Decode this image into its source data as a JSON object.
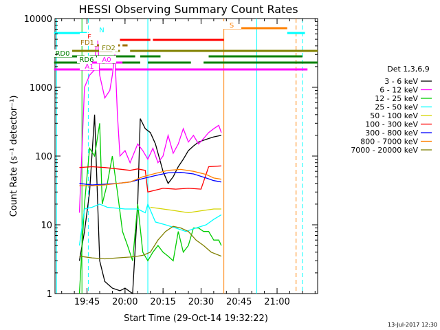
{
  "chart_data": {
    "type": "line",
    "title": "HESSI Observing Summary Count Rates",
    "xlabel": "Start Time (29-Oct-14 19:32:22)",
    "ylabel": "Count Rate (s⁻¹ detector⁻¹)",
    "yscale": "log",
    "ylim": [
      1,
      10000
    ],
    "xlim": [
      "19:32:22",
      "21:16:00"
    ],
    "x_ticks": [
      "19:45",
      "20:00",
      "20:15",
      "20:30",
      "20:45",
      "21:00"
    ],
    "y_ticks": [
      "1",
      "10",
      "100",
      "1000",
      "10000"
    ],
    "legend_title": "Det 1,3,6,9",
    "legend_position": "right",
    "series": [
      {
        "name": "3 - 6 keV",
        "color": "#000000",
        "points": [
          [
            "19:42",
            3
          ],
          [
            "19:44",
            8
          ],
          [
            "19:46",
            30
          ],
          [
            "19:48",
            400
          ],
          [
            "19:50",
            3
          ],
          [
            "19:52",
            1.5
          ],
          [
            "19:55",
            1.2
          ],
          [
            "19:58",
            1.1
          ],
          [
            "20:00",
            1.2
          ],
          [
            "20:03",
            1
          ],
          [
            "20:05",
            20
          ],
          [
            "20:06",
            350
          ],
          [
            "20:08",
            250
          ],
          [
            "20:10",
            220
          ],
          [
            "20:12",
            150
          ],
          [
            "20:15",
            60
          ],
          [
            "20:17",
            40
          ],
          [
            "20:19",
            50
          ],
          [
            "20:21",
            70
          ],
          [
            "20:23",
            90
          ],
          [
            "20:25",
            120
          ],
          [
            "20:27",
            140
          ],
          [
            "20:29",
            160
          ],
          [
            "20:31",
            170
          ],
          [
            "20:33",
            180
          ],
          [
            "20:35",
            190
          ],
          [
            "20:38",
            200
          ]
        ]
      },
      {
        "name": "6 - 12 keV",
        "color": "#ff00ff",
        "points": [
          [
            "19:42",
            15
          ],
          [
            "19:44",
            1000
          ],
          [
            "19:46",
            1500
          ],
          [
            "19:48",
            1800
          ],
          [
            "19:49",
            7000
          ],
          [
            "19:50",
            1500
          ],
          [
            "19:52",
            700
          ],
          [
            "19:54",
            900
          ],
          [
            "19:55",
            1500
          ],
          [
            "19:56",
            3000
          ],
          [
            "19:57",
            400
          ],
          [
            "19:58",
            100
          ],
          [
            "20:00",
            120
          ],
          [
            "20:02",
            80
          ],
          [
            "20:05",
            150
          ],
          [
            "20:07",
            120
          ],
          [
            "20:09",
            90
          ],
          [
            "20:11",
            130
          ],
          [
            "20:13",
            80
          ],
          [
            "20:15",
            100
          ],
          [
            "20:17",
            200
          ],
          [
            "20:19",
            110
          ],
          [
            "20:21",
            150
          ],
          [
            "20:23",
            250
          ],
          [
            "20:25",
            160
          ],
          [
            "20:27",
            200
          ],
          [
            "20:29",
            150
          ],
          [
            "20:31",
            180
          ],
          [
            "20:33",
            220
          ],
          [
            "20:35",
            250
          ],
          [
            "20:37",
            280
          ],
          [
            "20:38",
            220
          ]
        ]
      },
      {
        "name": "12 - 25 keV",
        "color": "#00cc00",
        "points": [
          [
            "19:42",
            1
          ],
          [
            "19:44",
            20
          ],
          [
            "19:46",
            130
          ],
          [
            "19:48",
            100
          ],
          [
            "19:50",
            300
          ],
          [
            "19:51",
            20
          ],
          [
            "19:53",
            40
          ],
          [
            "19:55",
            100
          ],
          [
            "19:57",
            30
          ],
          [
            "19:59",
            8
          ],
          [
            "20:01",
            5
          ],
          [
            "20:03",
            3
          ],
          [
            "20:05",
            20
          ],
          [
            "20:07",
            4
          ],
          [
            "20:09",
            3
          ],
          [
            "20:11",
            4
          ],
          [
            "20:13",
            5
          ],
          [
            "20:15",
            4
          ],
          [
            "20:17",
            3.5
          ],
          [
            "20:19",
            3
          ],
          [
            "20:21",
            8
          ],
          [
            "20:23",
            4
          ],
          [
            "20:25",
            5
          ],
          [
            "20:27",
            9
          ],
          [
            "20:29",
            9
          ],
          [
            "20:31",
            8
          ],
          [
            "20:33",
            8
          ],
          [
            "20:35",
            6
          ],
          [
            "20:37",
            6
          ],
          [
            "20:38",
            5
          ]
        ]
      },
      {
        "name": "25 - 50 keV",
        "color": "#00ffff",
        "points": [
          [
            "19:42",
            5
          ],
          [
            "19:44",
            17
          ],
          [
            "19:47",
            18
          ],
          [
            "19:50",
            20
          ],
          [
            "19:53",
            18
          ],
          [
            "20:00",
            17
          ],
          [
            "20:05",
            17
          ],
          [
            "20:08",
            15
          ],
          [
            "20:09",
            20
          ],
          [
            "20:12",
            11
          ],
          [
            "20:16",
            10
          ],
          [
            "20:20",
            9
          ],
          [
            "20:24",
            8
          ],
          [
            "20:28",
            9
          ],
          [
            "20:32",
            10
          ],
          [
            "20:35",
            12
          ],
          [
            "20:38",
            14
          ]
        ]
      },
      {
        "name": "50 - 100 keV",
        "color": "#d4d400",
        "points": [
          [
            "20:10",
            18
          ],
          [
            "20:15",
            17
          ],
          [
            "20:20",
            16
          ],
          [
            "20:25",
            15
          ],
          [
            "20:30",
            16
          ],
          [
            "20:35",
            17
          ],
          [
            "20:38",
            17
          ]
        ]
      },
      {
        "name": "100 - 300 keV",
        "color": "#ff0000",
        "points": [
          [
            "19:42",
            68
          ],
          [
            "19:47",
            70
          ],
          [
            "19:52",
            68
          ],
          [
            "19:57",
            65
          ],
          [
            "20:02",
            62
          ],
          [
            "20:05",
            65
          ],
          [
            "20:08",
            62
          ],
          [
            "20:09",
            30
          ],
          [
            "20:15",
            34
          ],
          [
            "20:20",
            33
          ],
          [
            "20:25",
            34
          ],
          [
            "20:30",
            33
          ],
          [
            "20:33",
            70
          ],
          [
            "20:38",
            72
          ]
        ]
      },
      {
        "name": "300 - 800 keV",
        "color": "#0000ff",
        "points": [
          [
            "19:42",
            40
          ],
          [
            "19:47",
            38
          ],
          [
            "19:52",
            39
          ],
          [
            "19:57",
            40
          ],
          [
            "20:02",
            42
          ],
          [
            "20:07",
            47
          ],
          [
            "20:12",
            52
          ],
          [
            "20:17",
            57
          ],
          [
            "20:22",
            58
          ],
          [
            "20:27",
            55
          ],
          [
            "20:32",
            48
          ],
          [
            "20:35",
            44
          ],
          [
            "20:38",
            42
          ]
        ]
      },
      {
        "name": "800 - 7000 keV",
        "color": "#ff8000",
        "points": [
          [
            "19:42",
            37
          ],
          [
            "19:47",
            37
          ],
          [
            "19:52",
            38
          ],
          [
            "19:57",
            40
          ],
          [
            "20:02",
            42
          ],
          [
            "20:07",
            50
          ],
          [
            "20:12",
            56
          ],
          [
            "20:17",
            62
          ],
          [
            "20:22",
            64
          ],
          [
            "20:27",
            60
          ],
          [
            "20:32",
            54
          ],
          [
            "20:35",
            48
          ],
          [
            "20:38",
            46
          ]
        ]
      },
      {
        "name": "7000 - 20000 keV",
        "color": "#808000",
        "points": [
          [
            "19:42",
            3.5
          ],
          [
            "19:47",
            3.3
          ],
          [
            "19:52",
            3.2
          ],
          [
            "19:57",
            3.3
          ],
          [
            "20:02",
            3.4
          ],
          [
            "20:05",
            3.5
          ],
          [
            "20:07",
            3.6
          ],
          [
            "20:10",
            4
          ],
          [
            "20:13",
            6
          ],
          [
            "20:16",
            8
          ],
          [
            "20:19",
            9.5
          ],
          [
            "20:22",
            9
          ],
          [
            "20:25",
            8
          ],
          [
            "20:28",
            6
          ],
          [
            "20:31",
            5
          ],
          [
            "20:34",
            4
          ],
          [
            "20:38",
            3.5
          ]
        ]
      }
    ],
    "vertical_lines": [
      {
        "time": "19:33:00",
        "color": "#00ffff",
        "style": "solid"
      },
      {
        "time": "19:43:00",
        "color": "#00cc00",
        "style": "solid"
      },
      {
        "time": "19:45:30",
        "color": "#00ffff",
        "style": "dashed"
      },
      {
        "time": "20:09:00",
        "color": "#00ffff",
        "style": "solid"
      },
      {
        "time": "20:39:00",
        "color": "#ff8000",
        "style": "solid"
      },
      {
        "time": "20:52:00",
        "color": "#00ffff",
        "style": "solid"
      },
      {
        "time": "21:07:30",
        "color": "#ff8000",
        "style": "dashed"
      },
      {
        "time": "21:10:00",
        "color": "#00ffff",
        "style": "dashed"
      }
    ],
    "flag_bars": [
      {
        "label": "N",
        "color": "#00ffff",
        "segments": [
          [
            "19:32",
            "19:45"
          ],
          [
            "21:04",
            "21:11"
          ]
        ]
      },
      {
        "label": "S",
        "color": "#ff8000",
        "segments": [
          [
            "20:39",
            "21:04"
          ]
        ]
      },
      {
        "label": "F",
        "color": "#ff0000",
        "segments": [
          [
            "19:58",
            "20:10"
          ],
          [
            "20:11",
            "20:39"
          ]
        ]
      },
      {
        "label": "FD1",
        "color": "#a07000",
        "segments": [
          [
            "19:48",
            "19:58"
          ],
          [
            "19:59",
            "20:01"
          ]
        ]
      },
      {
        "label": "FD2",
        "color": "#808000",
        "segments": [
          [
            "19:32",
            "19:55"
          ],
          [
            "19:56",
            "19:58"
          ],
          [
            "20:02",
            "21:16"
          ]
        ]
      },
      {
        "label": "RD0",
        "color": "#008000",
        "segments": [
          [
            "19:32",
            "19:44"
          ],
          [
            "19:46",
            "20:04"
          ],
          [
            "20:06",
            "20:14"
          ],
          [
            "20:33",
            "21:10"
          ]
        ]
      },
      {
        "label": "RD6",
        "color": "#008000",
        "segments": [
          [
            "19:32",
            "19:48"
          ],
          [
            "19:51",
            "19:57"
          ],
          [
            "19:58",
            "20:06"
          ],
          [
            "20:09",
            "20:26"
          ],
          [
            "20:31",
            "21:16"
          ]
        ]
      },
      {
        "label": "A1",
        "color": "#ff00ff",
        "segments": [
          [
            "19:32",
            "19:55"
          ],
          [
            "19:56",
            "21:12"
          ]
        ]
      },
      {
        "label": "A0",
        "color": "#ff00ff",
        "segments": [
          [
            "19:47",
            "19:51"
          ],
          [
            "19:52",
            "19:55"
          ],
          [
            "19:56",
            "19:59"
          ]
        ]
      }
    ]
  },
  "footer": {
    "date_stamp": "13-Jul-2017 12:30"
  }
}
